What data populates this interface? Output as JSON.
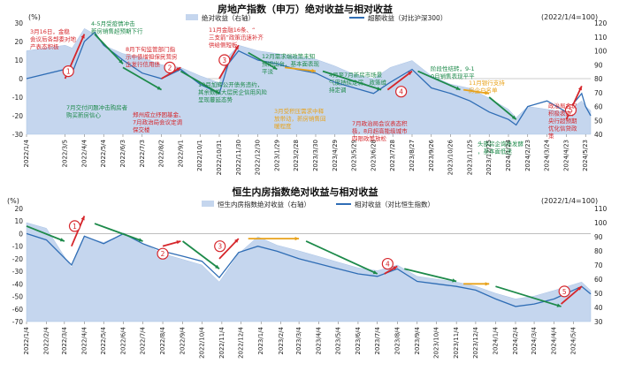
{
  "chart_data": [
    {
      "type": "area",
      "title": "房地产指数（申万）绝对收益与相对收益",
      "y_left_label": "(%)",
      "y_right_label": "(2022/1/4=100)",
      "y_left_ticks": [
        "30",
        "20",
        "10",
        "0",
        "-10",
        "-20",
        "-30"
      ],
      "y_right_ticks": [
        "120",
        "110",
        "100",
        "90",
        "80",
        "70",
        "60",
        "50",
        "40"
      ],
      "ylim_left": [
        -30,
        30
      ],
      "ylim_right": [
        40,
        120
      ],
      "legend": [
        "绝对收益（右轴）",
        "超额收益（对比沪深300）"
      ],
      "x_ticks": [
        "2022/1/4",
        "2022/3/5",
        "2022/4/4",
        "2022/5/4",
        "2022/6/3",
        "2022/7/3",
        "2022/8/2",
        "2022/9/1",
        "2022/10/1",
        "2022/10/31",
        "2022/11/30",
        "2022/12/30",
        "2023/1/29",
        "2023/2/28",
        "2023/3/30",
        "2023/4/29",
        "2023/5/29",
        "2023/6/28",
        "2023/7/28",
        "2023/8/27",
        "2023/9/26",
        "2023/10/26",
        "2023/11/25",
        "2023/12/25",
        "2024/1/24",
        "2024/2/23",
        "2024/3/24",
        "2024/4/23",
        "2024/5/23"
      ],
      "series": [
        {
          "name": "绝对收益（右轴）",
          "axis": "right",
          "color": "#c5d6ee",
          "x": [
            "2022/1/4",
            "2022/3/5",
            "2022/3/16",
            "2022/4/4",
            "2022/4/20",
            "2022/5/4",
            "2022/6/3",
            "2022/7/3",
            "2022/8/2",
            "2022/9/1",
            "2022/10/1",
            "2022/10/31",
            "2022/11/14",
            "2022/11/30",
            "2022/12/30",
            "2023/1/29",
            "2023/2/28",
            "2023/3/30",
            "2023/4/29",
            "2023/5/29",
            "2023/6/28",
            "2023/7/24",
            "2023/8/27",
            "2023/9/26",
            "2023/10/26",
            "2023/11/25",
            "2023/12/25",
            "2024/1/24",
            "2024/2/5",
            "2024/2/23",
            "2024/3/24",
            "2024/4/23",
            "2024/5/17",
            "2024/5/23",
            "2024/5/31"
          ],
          "values": [
            100,
            104,
            102,
            116,
            112,
            104,
            98,
            95,
            90,
            88,
            82,
            77,
            96,
            104,
            100,
            98,
            96,
            94,
            89,
            83,
            80,
            88,
            93,
            82,
            76,
            73,
            66,
            58,
            52,
            60,
            58,
            56,
            64,
            60,
            57
          ]
        },
        {
          "name": "超额收益（对比沪深300）",
          "axis": "left",
          "color": "#2f6db5",
          "x": [
            "2022/1/4",
            "2022/3/5",
            "2022/3/16",
            "2022/4/4",
            "2022/4/20",
            "2022/5/4",
            "2022/6/3",
            "2022/7/3",
            "2022/8/2",
            "2022/9/1",
            "2022/10/1",
            "2022/10/31",
            "2022/11/14",
            "2022/11/30",
            "2022/12/30",
            "2023/1/29",
            "2023/2/28",
            "2023/3/30",
            "2023/4/29",
            "2023/5/29",
            "2023/6/28",
            "2023/7/24",
            "2023/8/27",
            "2023/9/26",
            "2023/10/26",
            "2023/11/25",
            "2023/12/25",
            "2024/1/24",
            "2024/2/5",
            "2024/2/23",
            "2024/3/24",
            "2024/4/23",
            "2024/5/17",
            "2024/5/23",
            "2024/5/31"
          ],
          "values": [
            0,
            5,
            3,
            20,
            25,
            18,
            10,
            3,
            0,
            5,
            -3,
            -8,
            8,
            15,
            10,
            8,
            5,
            3,
            -2,
            -5,
            -8,
            -2,
            5,
            -5,
            -8,
            -12,
            -18,
            -22,
            -25,
            -15,
            -12,
            -18,
            -8,
            -15,
            -20
          ]
        }
      ],
      "annotations": [
        {
          "text": "3月16日，金稳会议后各部委对地产表态积极",
          "color": "#d6262b"
        },
        {
          "text": "4-5月受疫情冲击新房销售超预期下行",
          "color": "#1d8a4a"
        },
        {
          "text": "8月下旬监管部门指示中债增担保民营房企发行信用债",
          "color": "#d6262b"
        },
        {
          "text": "11月金融16条、“三支箭”政策迅速补齐供给侧短板",
          "color": "#d6262b"
        },
        {
          "text": "12月需求端政策未知预期出台，基本面表现平淡",
          "color": "#1d8a4a"
        },
        {
          "text": "7月交付问题冲击购房者购买新房信心",
          "color": "#1d8a4a"
        },
        {
          "text": "郑州成立纾困基金、7月政治局会议定调保交楼",
          "color": "#d6262b"
        },
        {
          "text": "10月加辉公开债务违约，其余数据大层民企信用风险呈现蔓延态势",
          "color": "#1d8a4a"
        },
        {
          "text": "3月受积压需求中释放带动，新房销售回暖程度",
          "color": "#e8a21a"
        },
        {
          "text": "4月至7月新房市场景气度持续走弱，政策维持定调",
          "color": "#1d8a4a"
        },
        {
          "text": "阶段性结转，9-10月销售表现平平",
          "color": "#1d8a4a"
        },
        {
          "text": "11月银行支持房企白名单",
          "color": "#e8a21a"
        },
        {
          "text": "7月政治局会议表态积极，8月超高能级城市四限政策放松",
          "color": "#d6262b"
        },
        {
          "text": "头部房企询债发酵，基本面低迷",
          "color": "#1d8a4a"
        },
        {
          "text": "政治局会议积极表态，央行超预期优化信贷政策",
          "color": "#d6262b"
        }
      ]
    },
    {
      "type": "area",
      "title": "恒生内房指数绝对收益与相对收益",
      "y_left_label": "(%)",
      "y_right_label": "(2022/1/4=100)",
      "y_left_ticks": [
        "20",
        "10",
        "0",
        "-10",
        "-20",
        "-30",
        "-40",
        "-50",
        "-60",
        "-70"
      ],
      "y_right_ticks": [
        "110",
        "100",
        "90",
        "80",
        "70",
        "60",
        "50",
        "40",
        "30"
      ],
      "ylim_left": [
        -70,
        20
      ],
      "ylim_right": [
        30,
        110
      ],
      "legend": [
        "恒生内房指数绝对收益（右轴）",
        "相对收益（对比恒生指数）"
      ],
      "x_ticks": [
        "2022/1/4",
        "2022/2/4",
        "2022/3/4",
        "2022/4/4",
        "2022/5/4",
        "2022/6/4",
        "2022/7/4",
        "2022/8/4",
        "2022/9/4",
        "2022/10/4",
        "2022/11/4",
        "2022/12/4",
        "2023/1/4",
        "2023/2/4",
        "2023/3/4",
        "2023/4/4",
        "2023/5/4",
        "2023/6/4",
        "2023/7/4",
        "2023/8/4",
        "2023/9/4",
        "2023/10/4",
        "2023/11/4",
        "2023/12/4",
        "2024/1/4",
        "2024/2/4",
        "2024/3/4",
        "2024/4/4",
        "2024/5/4"
      ],
      "series": [
        {
          "name": "恒生内房指数绝对收益（右轴）",
          "axis": "right",
          "color": "#c5d6ee",
          "x": [
            "2022/1/4",
            "2022/2/4",
            "2022/3/15",
            "2022/4/4",
            "2022/5/4",
            "2022/6/4",
            "2022/7/4",
            "2022/8/4",
            "2022/9/4",
            "2022/10/4",
            "2022/10/31",
            "2022/11/30",
            "2022/12/30",
            "2023/1/29",
            "2023/3/4",
            "2023/4/4",
            "2023/5/4",
            "2023/6/4",
            "2023/7/4",
            "2023/8/4",
            "2023/9/4",
            "2023/10/4",
            "2023/11/4",
            "2023/12/4",
            "2024/1/4",
            "2024/2/4",
            "2024/3/4",
            "2024/4/4",
            "2024/5/17",
            "2024/5/31"
          ],
          "values": [
            100,
            96,
            68,
            90,
            86,
            92,
            85,
            78,
            74,
            70,
            58,
            78,
            90,
            84,
            80,
            76,
            72,
            68,
            66,
            70,
            62,
            60,
            58,
            55,
            50,
            46,
            48,
            52,
            58,
            52
          ]
        },
        {
          "name": "相对收益（对比恒生指数）",
          "axis": "left",
          "color": "#2f6db5",
          "x": [
            "2022/1/4",
            "2022/2/4",
            "2022/3/15",
            "2022/4/4",
            "2022/5/4",
            "2022/6/4",
            "2022/7/4",
            "2022/8/4",
            "2022/9/4",
            "2022/10/4",
            "2022/10/31",
            "2022/11/30",
            "2022/12/30",
            "2023/1/29",
            "2023/3/4",
            "2023/4/4",
            "2023/5/4",
            "2023/6/4",
            "2023/7/4",
            "2023/8/4",
            "2023/9/4",
            "2023/10/4",
            "2023/11/4",
            "2023/12/4",
            "2024/1/4",
            "2024/2/4",
            "2024/3/4",
            "2024/4/4",
            "2024/5/17",
            "2024/5/31"
          ],
          "values": [
            0,
            -5,
            -25,
            -2,
            -8,
            0,
            -8,
            -14,
            -18,
            -22,
            -35,
            -15,
            -10,
            -14,
            -20,
            -24,
            -28,
            -32,
            -34,
            -28,
            -38,
            -40,
            -42,
            -45,
            -52,
            -58,
            -56,
            -52,
            -42,
            -48
          ]
        }
      ]
    }
  ],
  "badges1": [
    "1",
    "2",
    "3",
    "4",
    "5"
  ],
  "badges2": [
    "1",
    "2",
    "3",
    "4",
    "5"
  ]
}
